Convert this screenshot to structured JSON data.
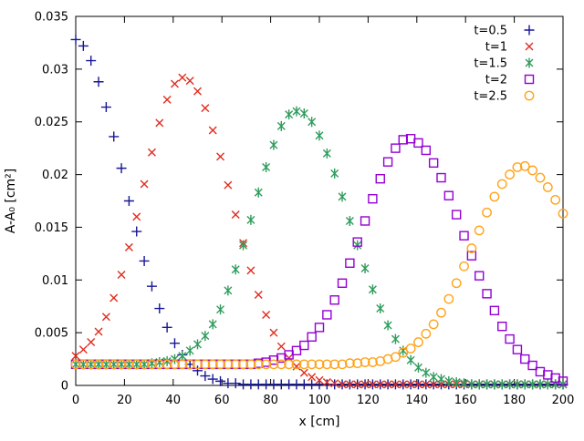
{
  "chart_data": {
    "type": "scatter",
    "title": "",
    "xlabel": "x [cm]",
    "ylabel": "A-A₀ [cm²]",
    "xlim": [
      0,
      200
    ],
    "ylim": [
      0,
      0.035
    ],
    "grid": false,
    "legend_position": "top-right-inside",
    "xticks": {
      "values": [
        0,
        20,
        40,
        60,
        80,
        100,
        120,
        140,
        160,
        180,
        200
      ],
      "labels": [
        "0",
        "20",
        "40",
        "60",
        "80",
        "100",
        "120",
        "140",
        "160",
        "180",
        "200"
      ]
    },
    "yticks": {
      "values": [
        0,
        0.005,
        0.01,
        0.015,
        0.02,
        0.025,
        0.03,
        0.035
      ],
      "labels": [
        "0",
        "0.005",
        "0.01",
        "0.015",
        "0.02",
        "0.025",
        "0.03",
        "0.035"
      ]
    },
    "x": [
      0,
      3.125,
      6.25,
      9.375,
      12.5,
      15.625,
      18.75,
      21.875,
      25,
      28.125,
      31.25,
      34.375,
      37.5,
      40.625,
      43.75,
      46.875,
      50,
      53.125,
      56.25,
      59.375,
      62.5,
      65.625,
      68.75,
      71.875,
      75,
      78.125,
      81.25,
      84.375,
      87.5,
      90.625,
      93.75,
      96.875,
      100,
      103.125,
      106.25,
      109.375,
      112.5,
      115.625,
      118.75,
      121.875,
      125,
      128.125,
      131.25,
      134.375,
      137.5,
      140.625,
      143.75,
      146.875,
      150,
      153.125,
      156.25,
      159.375,
      162.5,
      165.625,
      168.75,
      171.875,
      175,
      178.125,
      181.25,
      184.375,
      187.5,
      190.625,
      193.75,
      196.875,
      200
    ],
    "series": [
      {
        "name": "t=0.5",
        "marker": "plus",
        "color": "#171796",
        "values": [
          0.0328,
          0.0322,
          0.0308,
          0.0288,
          0.0264,
          0.0236,
          0.0206,
          0.0175,
          0.0146,
          0.0118,
          0.0094,
          0.0073,
          0.0055,
          0.004,
          0.0029,
          0.002,
          0.0014,
          0.0009,
          0.0006,
          0.0004,
          0.0002,
          0.0002,
          0.0001,
          0.0001,
          0.0001,
          0.0001,
          0.0001,
          0.0001,
          0.0001,
          0.0001,
          0.0001,
          0.0001,
          0.0001,
          0.0001,
          0.0001,
          0.0001,
          0.0001,
          0.0001,
          0.0001,
          0.0001,
          0.0001,
          0.0001,
          0.0001,
          0.0001,
          0.0001,
          0.0001,
          0.0001,
          0.0001,
          0.0001,
          0.0001,
          0.0001,
          0.0001,
          0.0001,
          0.0001,
          0.0001,
          0.0001,
          0.0001,
          0.0001,
          0.0001,
          0.0001,
          0.0001,
          0.0001,
          0.0001,
          0.0001,
          0.0001
        ]
      },
      {
        "name": "t=1",
        "marker": "cross",
        "color": "#e22c1e",
        "values": [
          0.0028,
          0.0034,
          0.0041,
          0.0051,
          0.0065,
          0.0083,
          0.0105,
          0.0131,
          0.016,
          0.0191,
          0.0221,
          0.0249,
          0.0271,
          0.0286,
          0.0292,
          0.0289,
          0.0279,
          0.0263,
          0.0242,
          0.0217,
          0.019,
          0.0162,
          0.0135,
          0.0109,
          0.0086,
          0.0067,
          0.005,
          0.0037,
          0.0026,
          0.0018,
          0.0012,
          0.0008,
          0.0005,
          0.0003,
          0.0002,
          0.0001,
          0.0001,
          0.0001,
          0.0001,
          0.0001,
          0.0001,
          0.0001,
          0.0001,
          0.0001,
          0.0001,
          0.0001,
          0.0001,
          0.0001,
          0.0001,
          0.0001,
          0.0001,
          0.0001,
          0.0001,
          0.0001,
          0.0001,
          0.0001,
          0.0001,
          0.0001,
          0.0001,
          0.0001,
          0.0001,
          0.0001,
          0.0001,
          0.0001,
          0.0001
        ]
      },
      {
        "name": "t=1.5",
        "marker": "asterisk",
        "color": "#2f9c5c",
        "values": [
          0.002,
          0.002,
          0.002,
          0.002,
          0.002,
          0.002,
          0.002,
          0.002,
          0.002,
          0.002,
          0.0021,
          0.0022,
          0.0023,
          0.0025,
          0.0028,
          0.0033,
          0.0039,
          0.0047,
          0.0058,
          0.0072,
          0.009,
          0.011,
          0.0133,
          0.0157,
          0.0183,
          0.0207,
          0.0228,
          0.0246,
          0.0257,
          0.026,
          0.0258,
          0.025,
          0.0237,
          0.022,
          0.0201,
          0.0179,
          0.0156,
          0.0133,
          0.0111,
          0.0091,
          0.0073,
          0.0057,
          0.0044,
          0.0033,
          0.0024,
          0.0017,
          0.0012,
          0.0008,
          0.0006,
          0.0004,
          0.0003,
          0.0002,
          0.0001,
          0.0001,
          0.0001,
          0.0001,
          0.0001,
          0.0001,
          0.0001,
          0.0001,
          0.0001,
          0.0001,
          0.0001,
          0.0001,
          0.0001
        ]
      },
      {
        "name": "t=2",
        "marker": "square",
        "color": "#9400d3",
        "values": [
          0.002,
          0.002,
          0.002,
          0.002,
          0.002,
          0.002,
          0.002,
          0.002,
          0.002,
          0.002,
          0.002,
          0.002,
          0.002,
          0.002,
          0.002,
          0.002,
          0.002,
          0.002,
          0.002,
          0.002,
          0.002,
          0.002,
          0.002,
          0.002,
          0.0021,
          0.0022,
          0.0024,
          0.0026,
          0.0029,
          0.0033,
          0.0038,
          0.0046,
          0.0055,
          0.0067,
          0.0081,
          0.0097,
          0.0116,
          0.0136,
          0.0156,
          0.0177,
          0.0196,
          0.0212,
          0.0225,
          0.0233,
          0.0234,
          0.023,
          0.0223,
          0.0211,
          0.0197,
          0.018,
          0.0162,
          0.0142,
          0.0123,
          0.0104,
          0.0087,
          0.0071,
          0.0056,
          0.0044,
          0.0034,
          0.0025,
          0.0019,
          0.0013,
          0.001,
          0.0007,
          0.0004
        ]
      },
      {
        "name": "t=2.5",
        "marker": "circle",
        "color": "#ffa31a",
        "values": [
          0.002,
          0.002,
          0.002,
          0.002,
          0.002,
          0.002,
          0.002,
          0.002,
          0.002,
          0.002,
          0.002,
          0.002,
          0.002,
          0.002,
          0.002,
          0.002,
          0.002,
          0.002,
          0.002,
          0.002,
          0.002,
          0.002,
          0.002,
          0.002,
          0.002,
          0.002,
          0.002,
          0.002,
          0.002,
          0.002,
          0.002,
          0.002,
          0.002,
          0.002,
          0.002,
          0.002,
          0.0021,
          0.0021,
          0.0022,
          0.0022,
          0.0023,
          0.0025,
          0.0027,
          0.0031,
          0.0035,
          0.0041,
          0.0049,
          0.0058,
          0.0069,
          0.0082,
          0.0097,
          0.0113,
          0.013,
          0.0147,
          0.0164,
          0.0179,
          0.0191,
          0.02,
          0.0207,
          0.0208,
          0.0204,
          0.0197,
          0.0188,
          0.0176,
          0.0163
        ]
      }
    ]
  }
}
